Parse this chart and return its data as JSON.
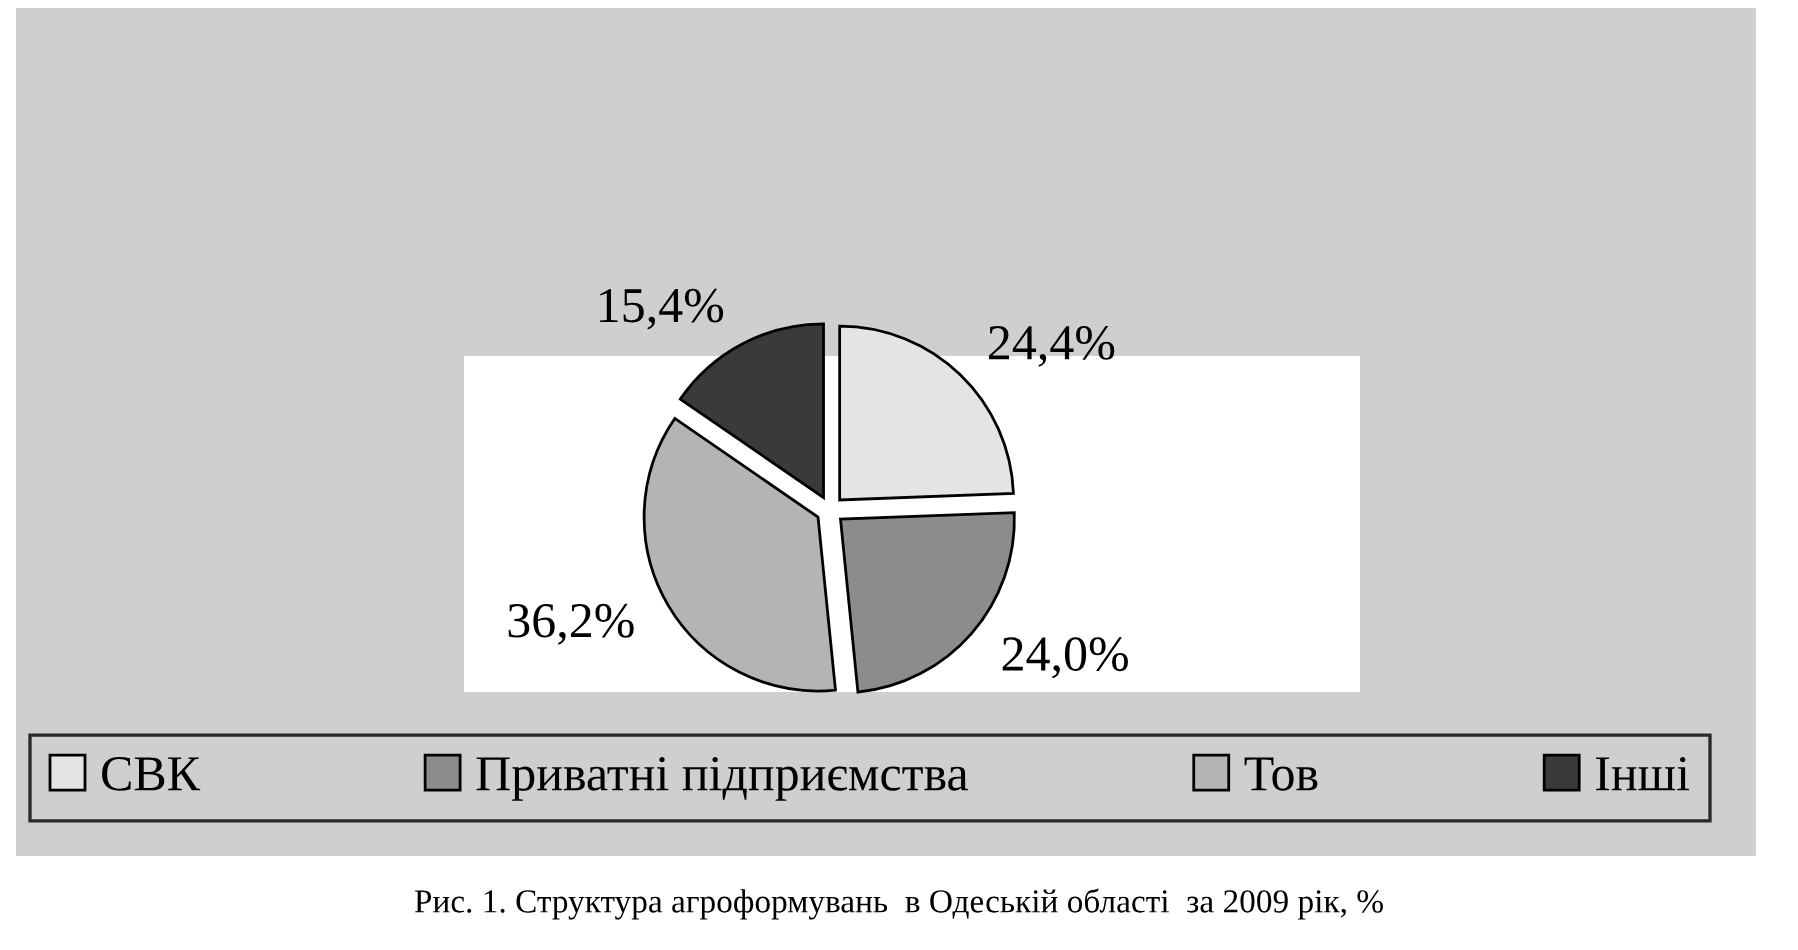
{
  "chart_data": {
    "type": "pie",
    "categories": [
      "СВК",
      "Приватні підприємства",
      "Тов",
      "Інші"
    ],
    "values": [
      24.4,
      24.0,
      36.2,
      15.4
    ],
    "value_labels": [
      "24,4%",
      "24,0%",
      "36,2%",
      "15,4%"
    ],
    "colors": [
      "#e4e4e4",
      "#8c8c8c",
      "#b4b4b4",
      "#3a3a3a"
    ],
    "legend": "bottom",
    "annotations": [
      "Рис. 1. Структура агроформувань  в Одеській області  за 2009 рік, %"
    ]
  }
}
